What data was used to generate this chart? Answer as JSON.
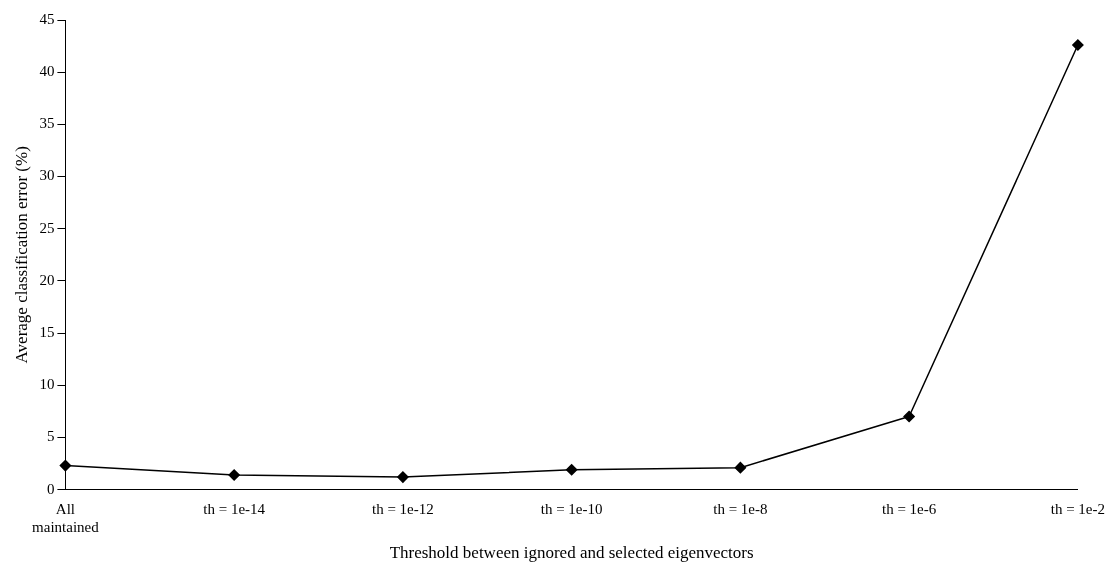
{
  "chart_data": {
    "type": "line",
    "xlabel": "Threshold between ignored and selected eigenvectors",
    "ylabel": "Average classification error (%)",
    "categories": [
      [
        "All",
        "maintained"
      ],
      "th = 1e-14",
      "th = 1e-12",
      "th = 1e-10",
      "th = 1e-8",
      "th = 1e-6",
      "th = 1e-2"
    ],
    "series": [
      {
        "color": "#000000",
        "values": [
          2.3,
          1.4,
          1.2,
          1.9,
          2.1,
          7.0,
          42.6
        ]
      }
    ],
    "ylim": [
      0,
      45
    ],
    "yticks": [
      0,
      5,
      10,
      15,
      20,
      25,
      30,
      35,
      40,
      45
    ],
    "grid": false,
    "legend": false,
    "marker": "diamond",
    "line_style": "solid"
  }
}
